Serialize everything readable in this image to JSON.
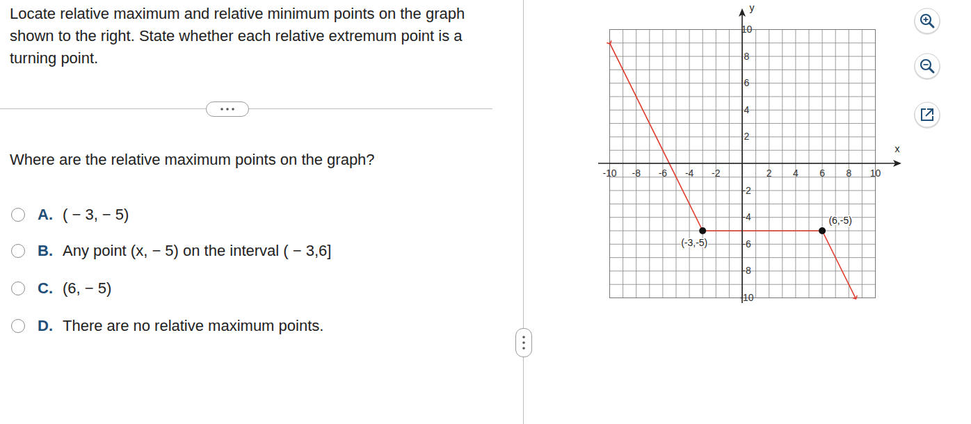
{
  "problem": {
    "prompt": "Locate relative maximum and relative minimum points on the graph shown to the right. State whether each relative extremum point is a turning point.",
    "question": "Where are the relative maximum points on the graph?",
    "options": [
      {
        "letter": "A.",
        "text": "( − 3, − 5)"
      },
      {
        "letter": "B.",
        "text": "Any point (x, − 5) on the interval ( − 3,6]"
      },
      {
        "letter": "C.",
        "text": "(6, − 5)"
      },
      {
        "letter": "D.",
        "text": "There are no relative maximum points."
      }
    ]
  },
  "chart_data": {
    "type": "line",
    "x": [
      -10,
      -3,
      6,
      8.5
    ],
    "values": [
      9,
      -5,
      -5,
      -10
    ],
    "color": "#e0392b",
    "xlim": [
      -10,
      10
    ],
    "ylim": [
      -10,
      10
    ],
    "xticks": [
      -10,
      -8,
      -6,
      -4,
      -2,
      2,
      4,
      6,
      8,
      10
    ],
    "yticks": [
      10,
      8,
      6,
      4,
      2,
      -2,
      -4,
      -6,
      -8,
      -10
    ],
    "x_label": "x",
    "y_label": "y",
    "grid": true,
    "points": [
      {
        "x": -3,
        "y": -5,
        "label": "(-3,-5)"
      },
      {
        "x": 6,
        "y": -5,
        "label": "(6,-5)"
      }
    ]
  }
}
